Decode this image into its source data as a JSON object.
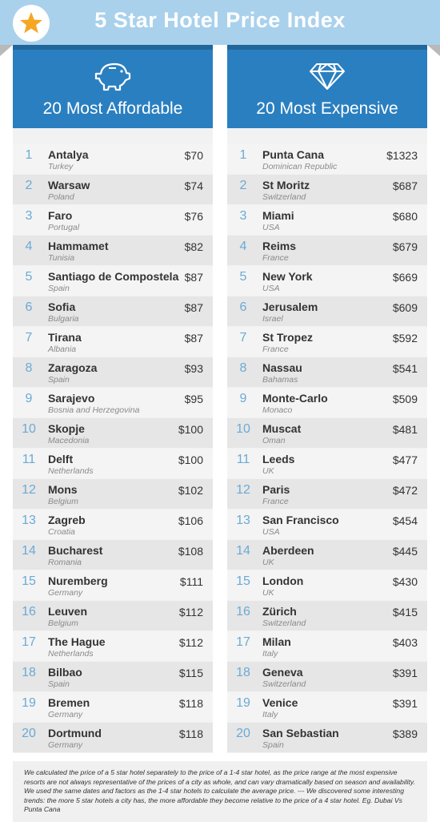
{
  "header": {
    "title": "5 Star Hotel Price Index"
  },
  "columns": [
    {
      "title": "20 Most Affordable",
      "rows": [
        {
          "rank": "1",
          "city": "Antalya",
          "country": "Turkey",
          "price": "$70"
        },
        {
          "rank": "2",
          "city": "Warsaw",
          "country": "Poland",
          "price": "$74"
        },
        {
          "rank": "3",
          "city": "Faro",
          "country": "Portugal",
          "price": "$76"
        },
        {
          "rank": "4",
          "city": "Hammamet",
          "country": "Tunisia",
          "price": "$82"
        },
        {
          "rank": "5",
          "city": "Santiago de Compostela",
          "country": "Spain",
          "price": "$87"
        },
        {
          "rank": "6",
          "city": "Sofia",
          "country": "Bulgaria",
          "price": "$87"
        },
        {
          "rank": "7",
          "city": "Tirana",
          "country": "Albania",
          "price": "$87"
        },
        {
          "rank": "8",
          "city": "Zaragoza",
          "country": "Spain",
          "price": "$93"
        },
        {
          "rank": "9",
          "city": "Sarajevo",
          "country": "Bosnia and Herzegovina",
          "price": "$95"
        },
        {
          "rank": "10",
          "city": "Skopje",
          "country": "Macedonia",
          "price": "$100"
        },
        {
          "rank": "11",
          "city": "Delft",
          "country": "Netherlands",
          "price": "$100"
        },
        {
          "rank": "12",
          "city": "Mons",
          "country": "Belgium",
          "price": "$102"
        },
        {
          "rank": "13",
          "city": "Zagreb",
          "country": "Croatia",
          "price": "$106"
        },
        {
          "rank": "14",
          "city": "Bucharest",
          "country": "Romania",
          "price": "$108"
        },
        {
          "rank": "15",
          "city": "Nuremberg",
          "country": "Germany",
          "price": "$111"
        },
        {
          "rank": "16",
          "city": "Leuven",
          "country": "Belgium",
          "price": "$112"
        },
        {
          "rank": "17",
          "city": "The Hague",
          "country": "Netherlands",
          "price": "$112"
        },
        {
          "rank": "18",
          "city": "Bilbao",
          "country": "Spain",
          "price": "$115"
        },
        {
          "rank": "19",
          "city": "Bremen",
          "country": "Germany",
          "price": "$118"
        },
        {
          "rank": "20",
          "city": "Dortmund",
          "country": "Germany",
          "price": "$118"
        }
      ]
    },
    {
      "title": "20 Most Expensive",
      "rows": [
        {
          "rank": "1",
          "city": "Punta Cana",
          "country": "Dominican Republic",
          "price": "$1323"
        },
        {
          "rank": "2",
          "city": "St Moritz",
          "country": "Switzerland",
          "price": "$687"
        },
        {
          "rank": "3",
          "city": "Miami",
          "country": "USA",
          "price": "$680"
        },
        {
          "rank": "4",
          "city": "Reims",
          "country": "France",
          "price": "$679"
        },
        {
          "rank": "5",
          "city": "New York",
          "country": "USA",
          "price": "$669"
        },
        {
          "rank": "6",
          "city": "Jerusalem",
          "country": "Israel",
          "price": "$609"
        },
        {
          "rank": "7",
          "city": "St Tropez",
          "country": "France",
          "price": "$592"
        },
        {
          "rank": "8",
          "city": "Nassau",
          "country": "Bahamas",
          "price": "$541"
        },
        {
          "rank": "9",
          "city": "Monte-Carlo",
          "country": "Monaco",
          "price": "$509"
        },
        {
          "rank": "10",
          "city": "Muscat",
          "country": "Oman",
          "price": "$481"
        },
        {
          "rank": "11",
          "city": "Leeds",
          "country": "UK",
          "price": "$477"
        },
        {
          "rank": "12",
          "city": "Paris",
          "country": "France",
          "price": "$472"
        },
        {
          "rank": "13",
          "city": "San Francisco",
          "country": "USA",
          "price": "$454"
        },
        {
          "rank": "14",
          "city": "Aberdeen",
          "country": "UK",
          "price": "$445"
        },
        {
          "rank": "15",
          "city": "London",
          "country": "UK",
          "price": "$430"
        },
        {
          "rank": "16",
          "city": "Zürich",
          "country": "Switzerland",
          "price": "$415"
        },
        {
          "rank": "17",
          "city": "Milan",
          "country": "Italy",
          "price": "$403"
        },
        {
          "rank": "18",
          "city": "Geneva",
          "country": "Switzerland",
          "price": "$391"
        },
        {
          "rank": "19",
          "city": "Venice",
          "country": "Italy",
          "price": "$391"
        },
        {
          "rank": "20",
          "city": "San Sebastian",
          "country": "Spain",
          "price": "$389"
        }
      ]
    }
  ],
  "footer": {
    "note": "We calculated the price of a 5 star hotel separately to the price of a 1-4 star hotel, as the price range at the most expensive resorts are not always representative of the prices of a city as whole, and can vary dramatically based on season and availability. We used the same dates and factors as the 1-4 star hotels to calculate the average price.  --- We discovered some interesting trends: the more 5 star hotels a city has, the more affordable they become relative to the price of a 4 star hotel. Eg. Dubai Vs Punta Cana"
  }
}
